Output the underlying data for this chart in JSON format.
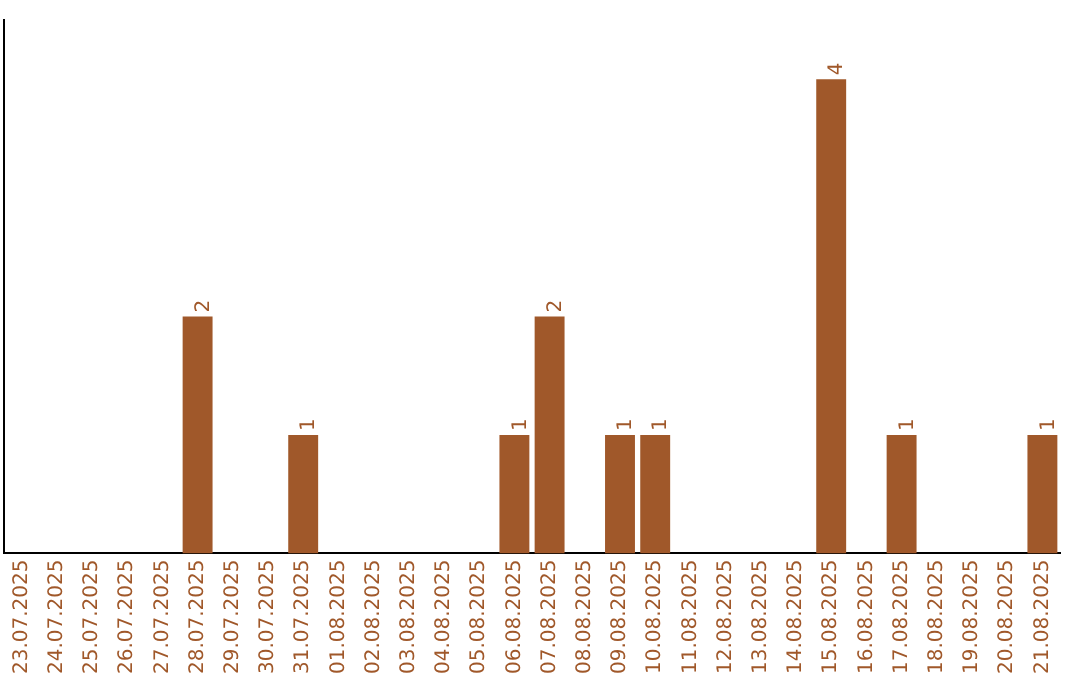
{
  "chart_data": {
    "type": "bar",
    "categories": [
      "23.07.2025",
      "24.07.2025",
      "25.07.2025",
      "26.07.2025",
      "27.07.2025",
      "28.07.2025",
      "29.07.2025",
      "30.07.2025",
      "31.07.2025",
      "01.08.2025",
      "02.08.2025",
      "03.08.2025",
      "04.08.2025",
      "05.08.2025",
      "06.08.2025",
      "07.08.2025",
      "08.08.2025",
      "09.08.2025",
      "10.08.2025",
      "11.08.2025",
      "12.08.2025",
      "13.08.2025",
      "14.08.2025",
      "15.08.2025",
      "16.08.2025",
      "17.08.2025",
      "18.08.2025",
      "19.08.2025",
      "20.08.2025",
      "21.08.2025"
    ],
    "values": [
      0,
      0,
      0,
      0,
      0,
      2,
      0,
      0,
      1,
      0,
      0,
      0,
      0,
      0,
      1,
      2,
      0,
      1,
      1,
      0,
      0,
      0,
      0,
      4,
      0,
      1,
      0,
      0,
      0,
      1
    ],
    "value_labels": [
      null,
      null,
      null,
      null,
      null,
      "2",
      null,
      null,
      "1",
      null,
      null,
      null,
      null,
      null,
      "1",
      "2",
      null,
      "1",
      "1",
      null,
      null,
      null,
      null,
      "4",
      null,
      "1",
      null,
      null,
      null,
      "1"
    ],
    "color": "#a0582a",
    "grid": false,
    "legend": false,
    "tick_labels": "x"
  }
}
